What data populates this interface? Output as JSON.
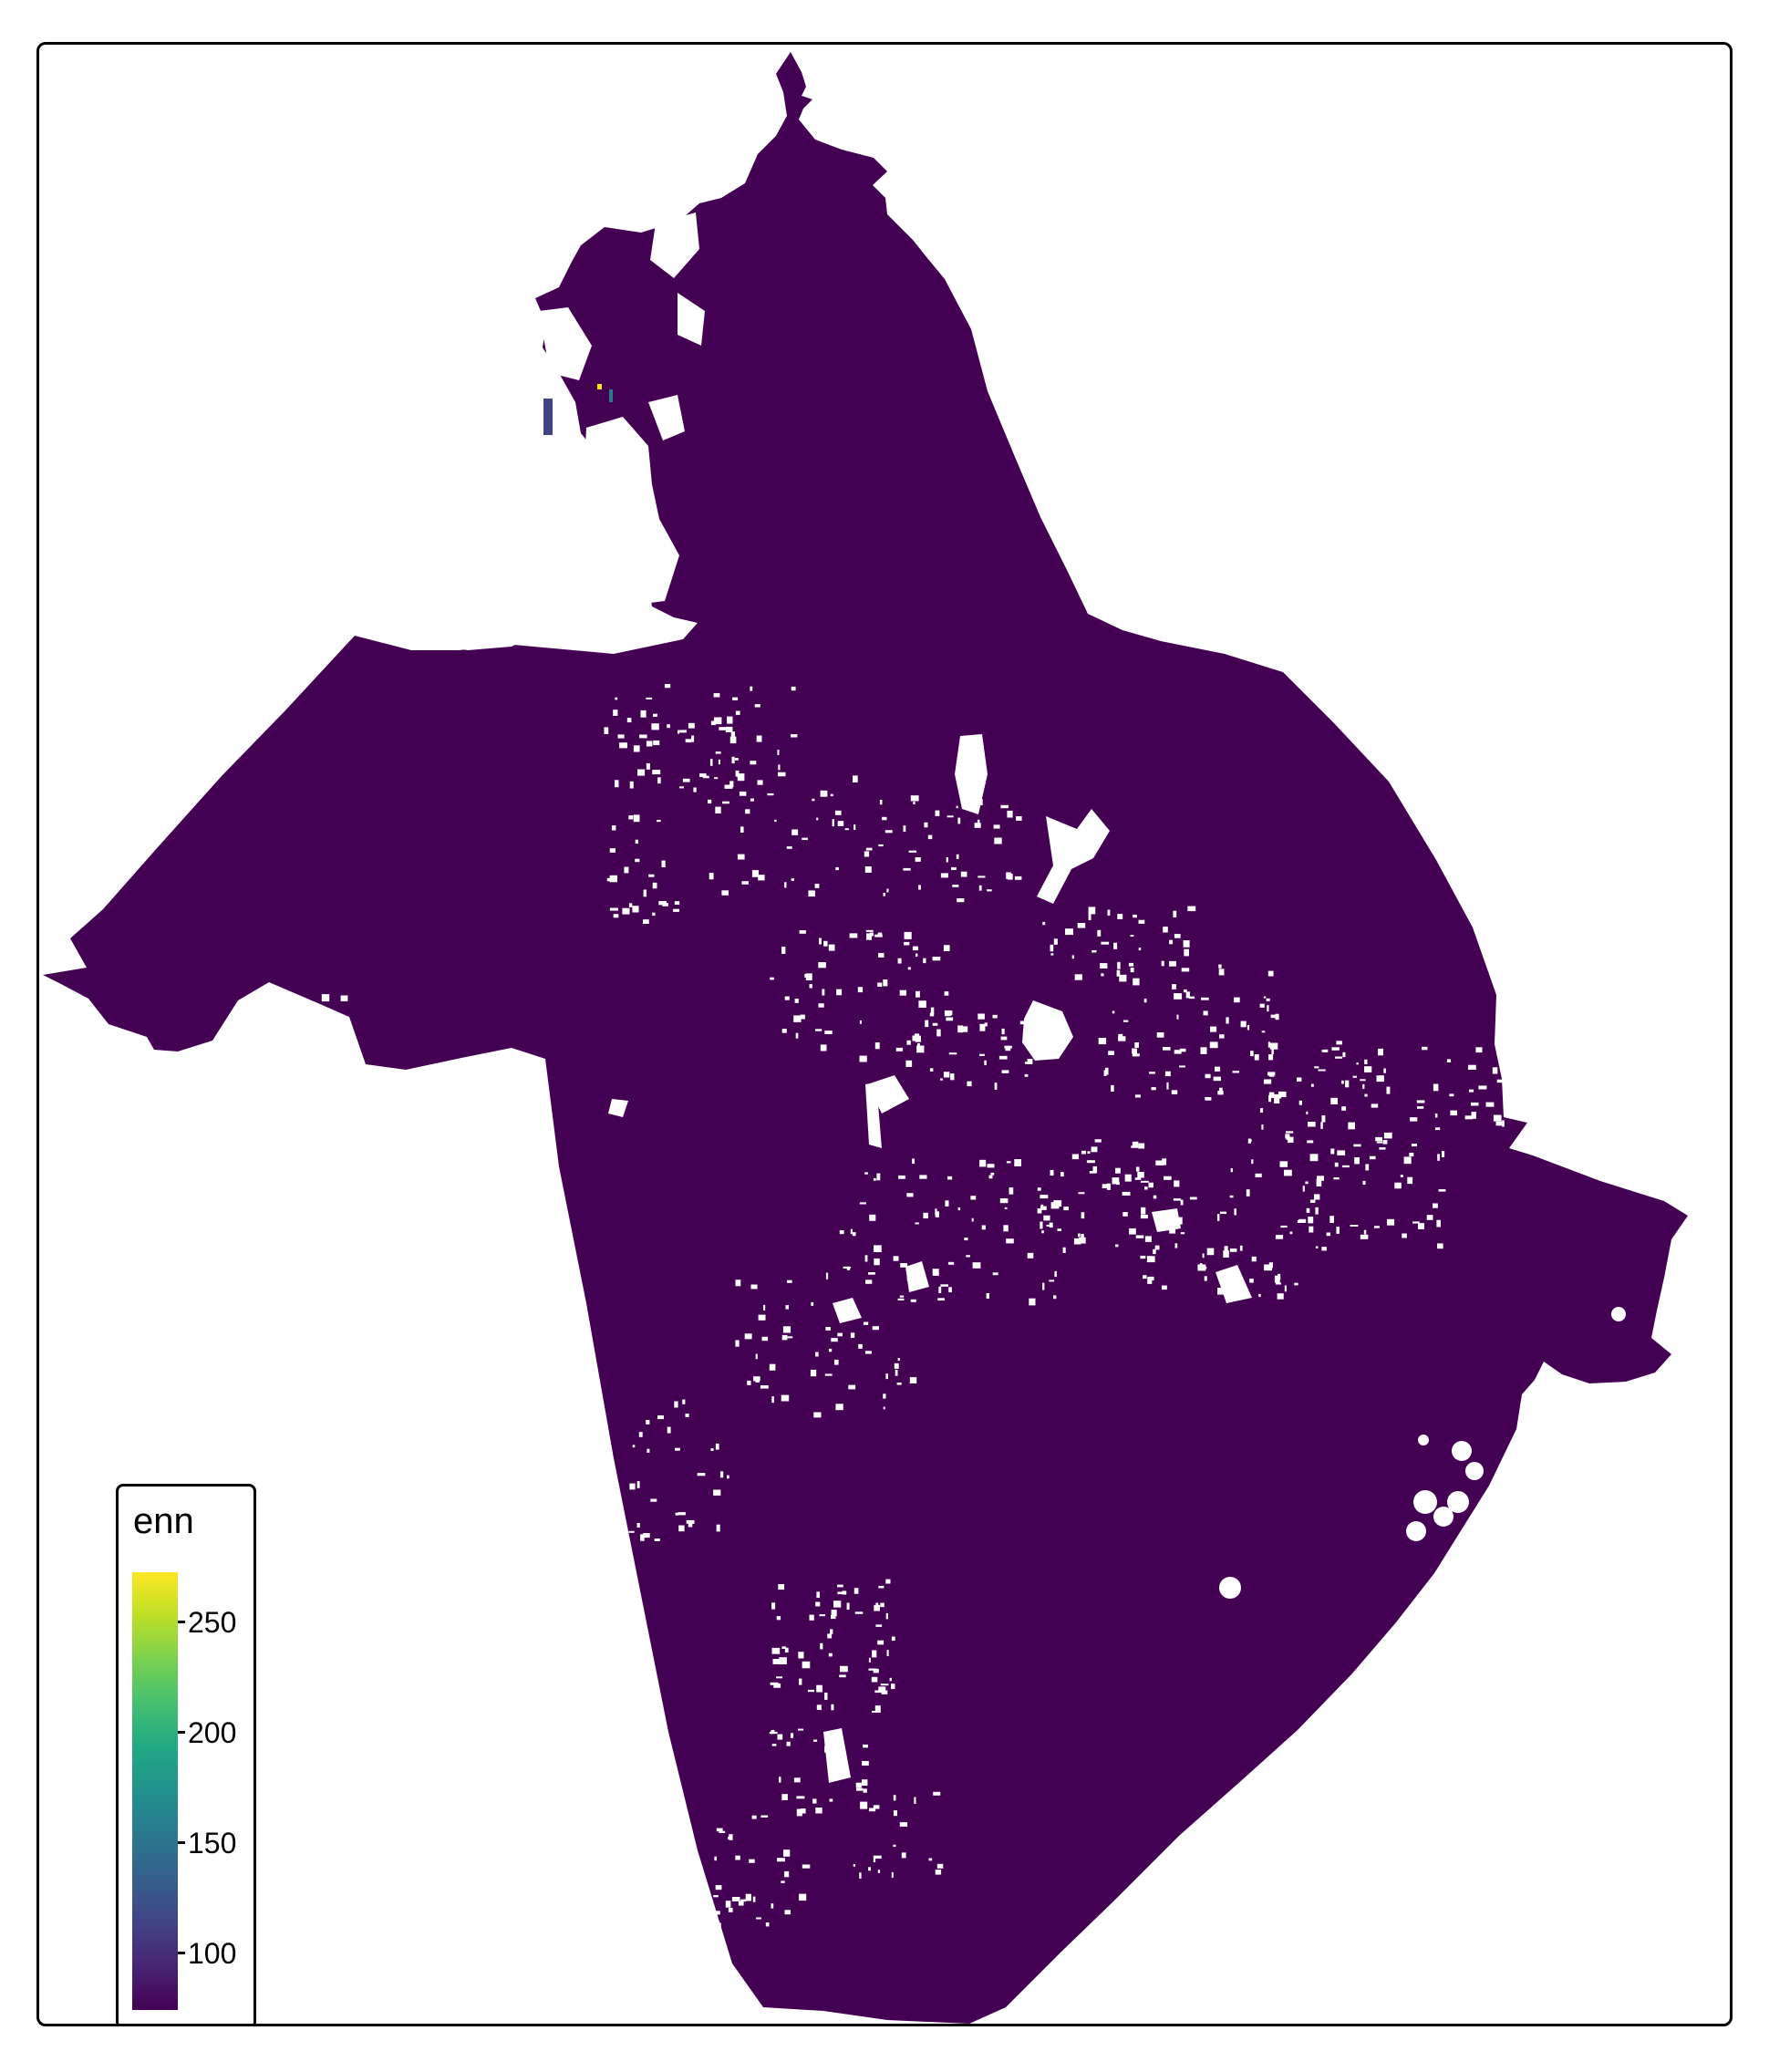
{
  "map": {
    "fill_color": "#440154",
    "background_color": "#ffffff",
    "frame_color": "#000000"
  },
  "legend": {
    "title": "enn",
    "colormap": "viridis",
    "range": [
      74,
      272
    ],
    "ticks": [
      {
        "value": 250,
        "label": "250"
      },
      {
        "value": 200,
        "label": "200"
      },
      {
        "value": 150,
        "label": "150"
      },
      {
        "value": 100,
        "label": "100"
      }
    ],
    "colors": [
      "#440154",
      "#482475",
      "#414487",
      "#355f8d",
      "#2a788e",
      "#21918c",
      "#22a884",
      "#44bf70",
      "#7ad151",
      "#bddf26",
      "#fde725"
    ]
  }
}
